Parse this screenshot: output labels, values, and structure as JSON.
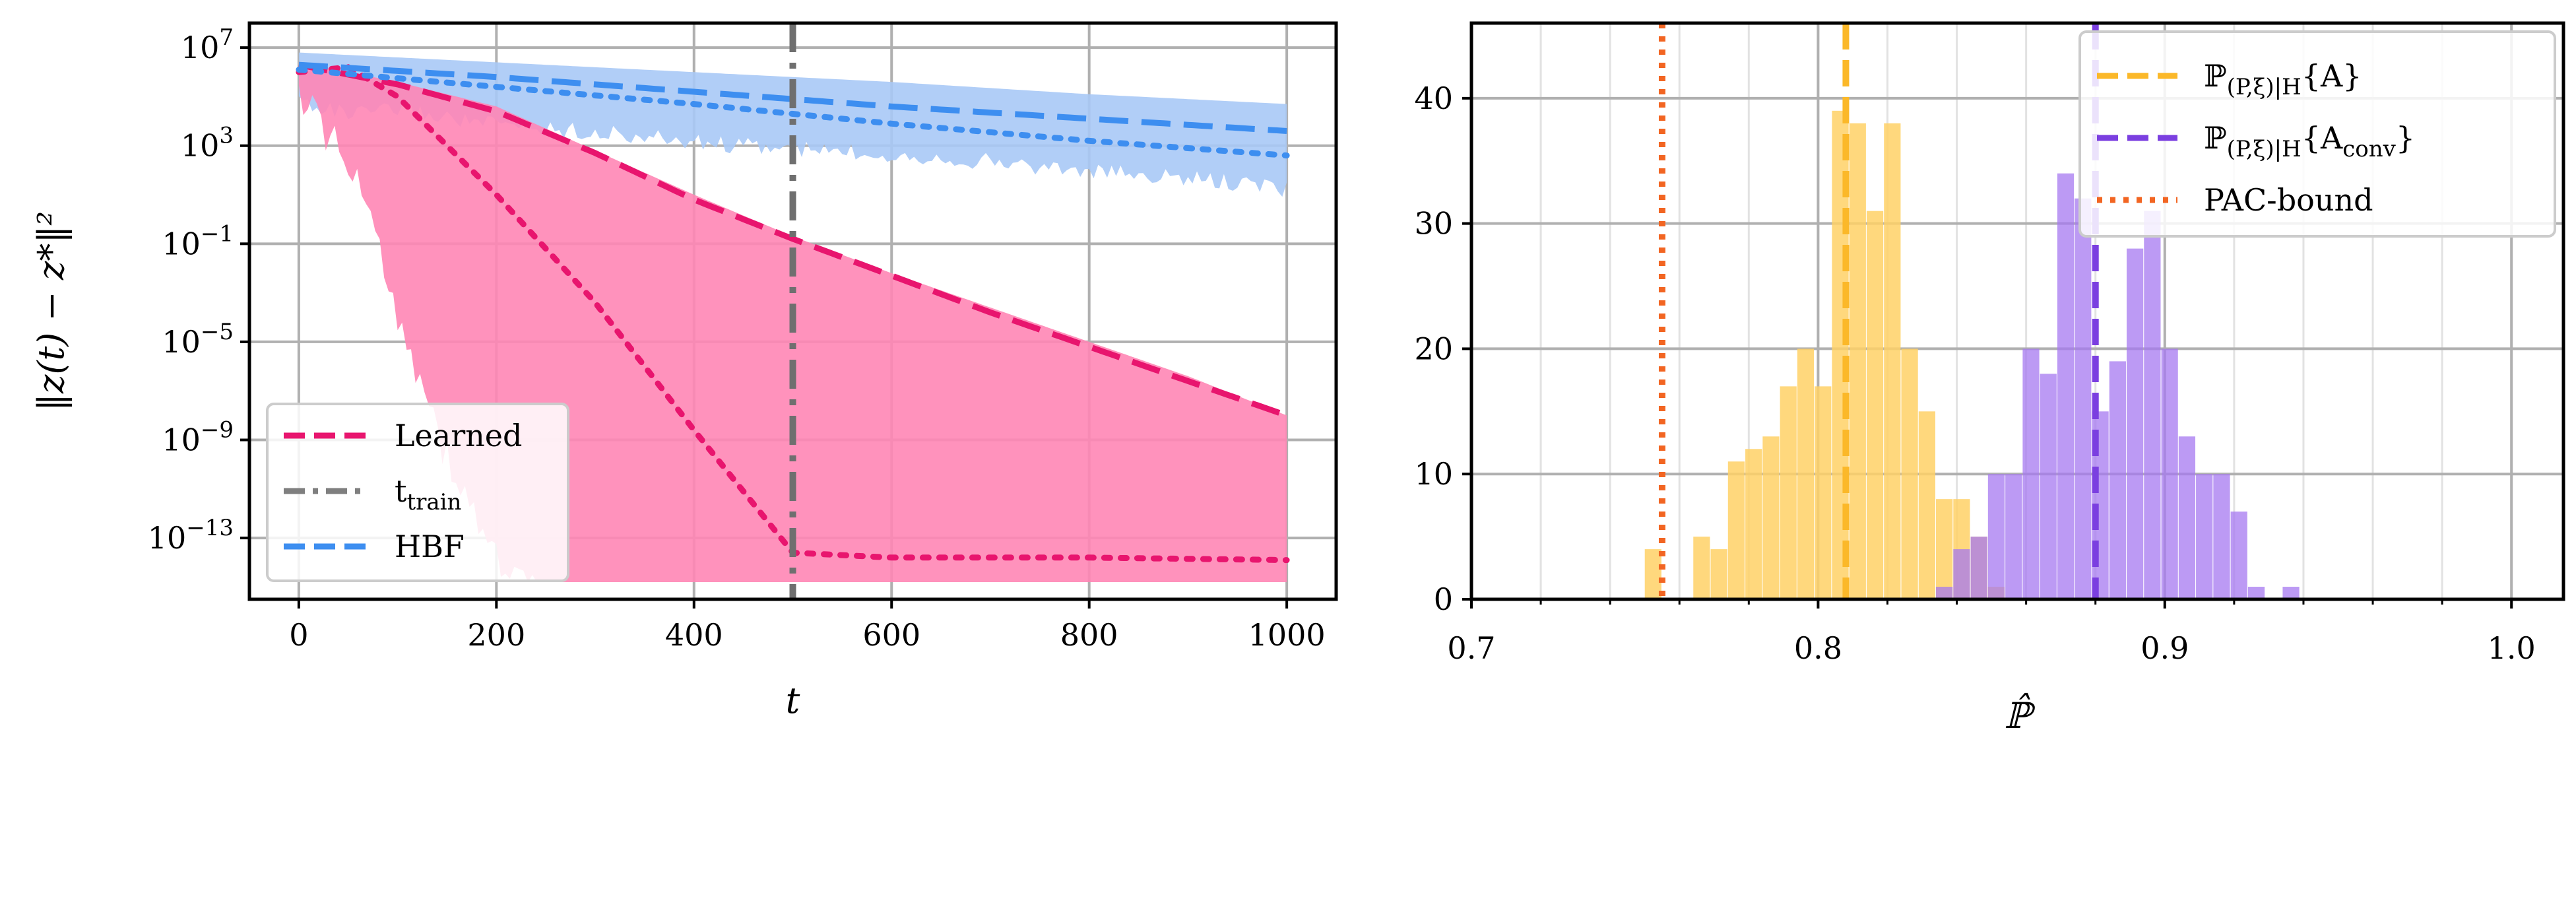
{
  "chart_data": [
    {
      "type": "line",
      "xlabel": "t",
      "ylabel": "‖z(t) − z*‖²",
      "yscale": "log",
      "xlim": [
        -50,
        1050
      ],
      "ylim_log10": [
        -15.5,
        8
      ],
      "x_ticks": [
        0,
        200,
        400,
        600,
        800,
        1000
      ],
      "y_ticks": [
        {
          "exp": 7,
          "base": "10",
          "sup": "7"
        },
        {
          "exp": 3,
          "base": "10",
          "sup": "3"
        },
        {
          "exp": -1,
          "base": "10",
          "sup": "−1"
        },
        {
          "exp": -5,
          "base": "10",
          "sup": "−5"
        },
        {
          "exp": -9,
          "base": "10",
          "sup": "−9"
        },
        {
          "exp": -13,
          "base": "10",
          "sup": "−13"
        }
      ],
      "grid": true,
      "vline": {
        "x": 500,
        "label": "t_train"
      },
      "legend": {
        "position": "lower-left",
        "entries": [
          {
            "label": "Learned",
            "color": "#e8156e",
            "style": "dashed"
          },
          {
            "label": "t",
            "sub": "train",
            "color": "#7f7f7f",
            "style": "dashdot"
          },
          {
            "label": "HBF",
            "color": "#3d8ef0",
            "style": "dashed"
          }
        ]
      },
      "series": [
        {
          "name": "Learned",
          "color": "#e8156e",
          "band_color": "#ff86b5",
          "band_upper": {
            "x": [
              0,
              100,
              200,
              300,
              400,
              500,
              600,
              700,
              800,
              900,
              1000
            ],
            "y": [
              6.4,
              5.6,
              4.6,
              2.8,
              1.0,
              -0.7,
              -2.2,
              -3.6,
              -5.0,
              -6.4,
              -8.0
            ]
          },
          "band_lower": {
            "x": [
              0,
              20,
              50,
              80,
              100,
              130,
              150,
              200,
              250,
              300,
              1000
            ],
            "y": [
              5.8,
              4.8,
              3.0,
              0.0,
              -3.0,
              -6.5,
              -9.0,
              -13.0,
              -15.0,
              -15.0,
              -15.0
            ]
          },
          "mean": {
            "x": [
              0,
              100,
              200,
              300,
              400,
              500,
              600,
              700,
              800,
              900,
              1000
            ],
            "y": [
              6.3,
              5.5,
              4.4,
              2.7,
              0.8,
              -0.8,
              -2.3,
              -3.8,
              -5.2,
              -6.6,
              -8.0
            ]
          },
          "median": {
            "x": [
              0,
              50,
              100,
              150,
              200,
              300,
              400,
              500,
              600,
              800,
              1000
            ],
            "y": [
              6.0,
              6.2,
              5.0,
              3.0,
              1.0,
              -3.4,
              -8.6,
              -13.6,
              -13.8,
              -13.8,
              -13.9
            ]
          }
        },
        {
          "name": "HBF",
          "color": "#3d8ef0",
          "band_color": "#a9c9f6",
          "band_upper": {
            "x": [
              0,
              200,
              400,
              600,
              800,
              1000
            ],
            "y": [
              6.8,
              6.4,
              6.0,
              5.6,
              5.1,
              4.7
            ]
          },
          "band_lower": {
            "x": [
              0,
              50,
              100,
              200,
              300,
              400,
              500,
              600,
              700,
              800,
              900,
              1000
            ],
            "y": [
              5.2,
              4.6,
              4.8,
              4.2,
              3.9,
              3.5,
              3.2,
              3.0,
              2.7,
              2.3,
              2.0,
              1.6
            ]
          },
          "mean": {
            "x": [
              0,
              200,
              400,
              600,
              800,
              1000
            ],
            "y": [
              6.3,
              5.8,
              5.2,
              4.6,
              4.1,
              3.6
            ]
          },
          "median": {
            "x": [
              0,
              200,
              400,
              600,
              800,
              1000
            ],
            "y": [
              6.1,
              5.4,
              4.7,
              3.9,
              3.2,
              2.6
            ]
          }
        }
      ]
    },
    {
      "type": "bar",
      "xlabel": "ℙ̂",
      "xlim": [
        0.7,
        1.015
      ],
      "ylim": [
        0,
        46
      ],
      "x_ticks": [
        0.7,
        0.8,
        0.9,
        1.0
      ],
      "x_tick_labels": [
        "0.7",
        "0.8",
        "0.9",
        "1.0"
      ],
      "y_ticks": [
        0,
        10,
        20,
        30,
        40
      ],
      "grid": true,
      "bin_width": 0.0048,
      "legend": {
        "position": "top-right",
        "entries": [
          {
            "label_main": "ℙ",
            "label_sub": "(P,ξ)|H",
            "label_set": "{A}",
            "color": "#fbb829",
            "style": "dashed"
          },
          {
            "label_main": "ℙ",
            "label_sub": "(P,ξ)|H",
            "label_set": "{A",
            "label_set_sub": "conv",
            "label_set_end": "}",
            "color": "#7b3fe0",
            "style": "dashed"
          },
          {
            "label_main": "PAC-bound",
            "color": "#f26522",
            "style": "dotted"
          }
        ]
      },
      "series": [
        {
          "name": "P{A}",
          "color": "#ffd166",
          "bins": [
            0.75,
            0.764,
            0.769,
            0.774,
            0.779,
            0.784,
            0.789,
            0.794,
            0.799,
            0.804,
            0.809,
            0.814,
            0.819,
            0.824,
            0.829,
            0.834,
            0.839,
            0.844,
            0.849
          ],
          "counts": [
            4,
            5,
            4,
            11,
            12,
            13,
            17,
            20,
            17,
            39,
            38,
            31,
            38,
            20,
            15,
            8,
            8,
            5,
            1
          ]
        },
        {
          "name": "P{Aconv}",
          "color": "#a678f0",
          "bins": [
            0.834,
            0.839,
            0.844,
            0.849,
            0.854,
            0.859,
            0.864,
            0.869,
            0.874,
            0.879,
            0.884,
            0.889,
            0.894,
            0.899,
            0.904,
            0.909,
            0.914,
            0.919,
            0.924,
            0.929,
            0.934,
            0.939
          ],
          "counts": [
            1,
            4,
            5,
            10,
            10,
            20,
            18,
            34,
            32,
            15,
            19,
            28,
            31,
            20,
            13,
            10,
            10,
            7,
            1,
            0,
            1,
            0
          ]
        }
      ],
      "vlines": [
        {
          "x": 0.808,
          "color": "#fbb829",
          "style": "dashed"
        },
        {
          "x": 0.88,
          "color": "#7b3fe0",
          "style": "dashed"
        },
        {
          "x": 0.755,
          "color": "#f26522",
          "style": "dotted"
        }
      ]
    }
  ]
}
